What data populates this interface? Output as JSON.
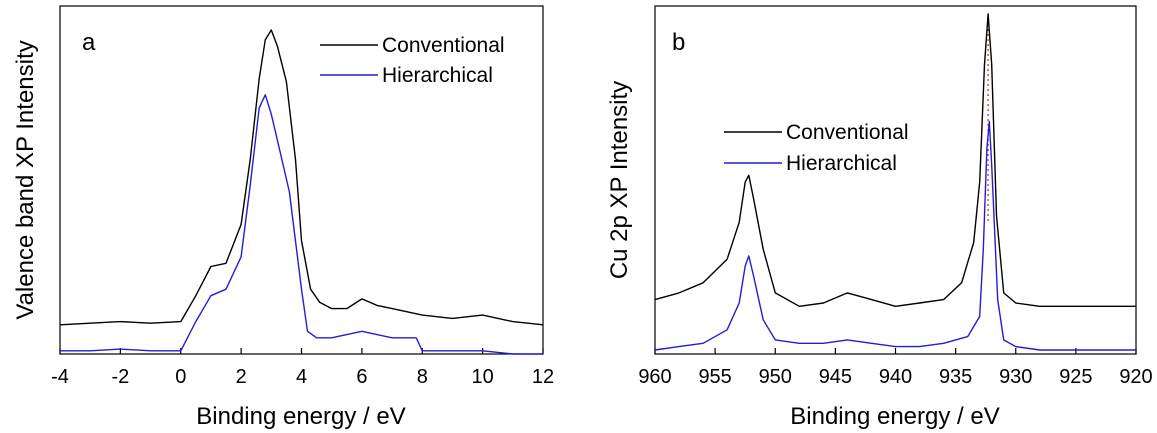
{
  "chart_data": [
    {
      "type": "line",
      "panel_label": "a",
      "xlabel": "Binding energy / eV",
      "ylabel": "Valence band XP Intensity",
      "xlim": [
        -4,
        12
      ],
      "x_reversed": false,
      "xticks": [
        "-4",
        "-2",
        "0",
        "2",
        "4",
        "6",
        "8",
        "10",
        "12"
      ],
      "xtick_values": [
        -4,
        -2,
        0,
        2,
        4,
        6,
        8,
        10,
        12
      ],
      "ylim": [
        0,
        1
      ],
      "legend_position": "top-right",
      "series": [
        {
          "name": "Conventional",
          "color": "#000000",
          "x": [
            -4,
            -3,
            -2,
            -1,
            0,
            0.5,
            1,
            1.5,
            2,
            2.3,
            2.6,
            2.8,
            3,
            3.2,
            3.5,
            3.8,
            4,
            4.3,
            4.6,
            5,
            5.5,
            6,
            6.5,
            7,
            8,
            9,
            10,
            11,
            12
          ],
          "y": [
            0.09,
            0.095,
            0.1,
            0.095,
            0.1,
            0.18,
            0.27,
            0.28,
            0.4,
            0.6,
            0.85,
            0.97,
            1.0,
            0.95,
            0.84,
            0.6,
            0.35,
            0.2,
            0.16,
            0.14,
            0.14,
            0.17,
            0.15,
            0.14,
            0.12,
            0.11,
            0.12,
            0.1,
            0.09
          ]
        },
        {
          "name": "Hierarchical",
          "color": "#1f1fd6",
          "x": [
            -4,
            -3,
            -2,
            -1,
            0,
            0.5,
            1,
            1.5,
            2,
            2.3,
            2.6,
            2.8,
            3,
            3.3,
            3.6,
            4,
            4.2,
            4.5,
            5,
            5.5,
            6,
            6.5,
            7,
            7.8,
            8,
            9,
            10,
            11,
            12
          ],
          "y": [
            0.01,
            0.01,
            0.015,
            0.01,
            0.01,
            0.1,
            0.18,
            0.2,
            0.3,
            0.52,
            0.76,
            0.8,
            0.74,
            0.62,
            0.5,
            0.2,
            0.07,
            0.05,
            0.05,
            0.06,
            0.07,
            0.06,
            0.05,
            0.05,
            0.01,
            0.01,
            0.01,
            0.0,
            0.0
          ]
        }
      ]
    },
    {
      "type": "line",
      "panel_label": "b",
      "xlabel": "Binding energy / eV",
      "ylabel": "Cu 2p XP Intensity",
      "xlim": [
        960,
        920
      ],
      "x_reversed": true,
      "xticks": [
        "960",
        "955",
        "950",
        "945",
        "940",
        "935",
        "930",
        "925",
        "920"
      ],
      "xtick_values": [
        960,
        955,
        950,
        945,
        940,
        935,
        930,
        925,
        920
      ],
      "ylim": [
        0,
        1
      ],
      "legend_position": "top-left",
      "reference_line_x": 932.3,
      "series": [
        {
          "name": "Conventional",
          "color": "#000000",
          "x": [
            960,
            958,
            956,
            954,
            953,
            952.5,
            952.2,
            951.8,
            951,
            950,
            948,
            946,
            944,
            942,
            940,
            938,
            936,
            934.5,
            933.5,
            933,
            932.6,
            932.3,
            932,
            931.6,
            931,
            930,
            928,
            925,
            922,
            920
          ],
          "y": [
            0.15,
            0.17,
            0.2,
            0.27,
            0.38,
            0.5,
            0.52,
            0.45,
            0.3,
            0.17,
            0.13,
            0.14,
            0.17,
            0.15,
            0.13,
            0.14,
            0.15,
            0.2,
            0.32,
            0.5,
            0.85,
            1.0,
            0.85,
            0.4,
            0.17,
            0.14,
            0.13,
            0.13,
            0.13,
            0.13
          ]
        },
        {
          "name": "Hierarchical",
          "color": "#1f1fd6",
          "x": [
            960,
            958,
            956,
            954,
            953,
            952.5,
            952.2,
            951.8,
            951,
            950,
            948,
            946,
            944,
            942,
            940,
            938,
            936,
            934,
            933,
            932.7,
            932.4,
            932.2,
            932,
            931.5,
            931,
            930,
            928,
            925,
            922,
            920
          ],
          "y": [
            0.0,
            0.01,
            0.02,
            0.06,
            0.14,
            0.25,
            0.28,
            0.22,
            0.09,
            0.03,
            0.02,
            0.02,
            0.03,
            0.02,
            0.01,
            0.01,
            0.02,
            0.04,
            0.1,
            0.3,
            0.6,
            0.68,
            0.55,
            0.15,
            0.03,
            0.01,
            0.0,
            0.0,
            0.0,
            0.0
          ]
        }
      ]
    }
  ]
}
